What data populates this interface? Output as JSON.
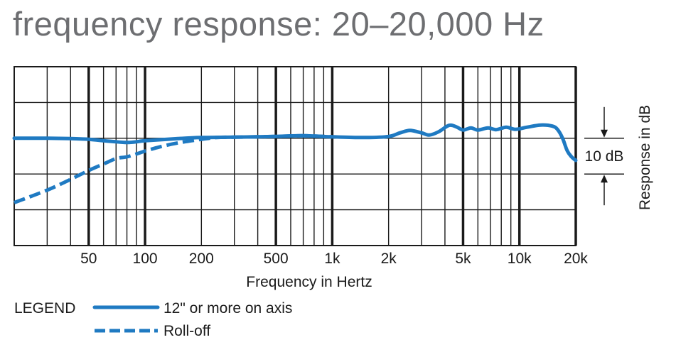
{
  "chart_data": {
    "type": "line",
    "title": "frequency response: 20–20,000 Hz",
    "xlabel": "Frequency in Hertz",
    "ylabel": "Response in dB",
    "x_scale": "log",
    "xlim": [
      20,
      20000
    ],
    "x_ticks": [
      {
        "value": 50,
        "label": "50"
      },
      {
        "value": 100,
        "label": "100"
      },
      {
        "value": 200,
        "label": "200"
      },
      {
        "value": 500,
        "label": "500"
      },
      {
        "value": 1000,
        "label": "1k"
      },
      {
        "value": 2000,
        "label": "2k"
      },
      {
        "value": 5000,
        "label": "5k"
      },
      {
        "value": 10000,
        "label": "10k"
      },
      {
        "value": 20000,
        "label": "20k"
      }
    ],
    "ylim": [
      -30,
      20
    ],
    "y_gridlines": [
      -30,
      -20,
      -10,
      0,
      10,
      20
    ],
    "scale_indicator": {
      "label": "10 dB",
      "from": -10,
      "to": 0
    },
    "grid": true,
    "legend": {
      "title": "LEGEND",
      "placement": "bottom-left"
    },
    "series": [
      {
        "name": "12\" or more on axis",
        "style": "solid",
        "color": "#1f7ac2",
        "points": [
          [
            20,
            0
          ],
          [
            30,
            0
          ],
          [
            40,
            -0.1
          ],
          [
            50,
            -0.3
          ],
          [
            60,
            -0.7
          ],
          [
            70,
            -1.0
          ],
          [
            80,
            -1.2
          ],
          [
            90,
            -1.0
          ],
          [
            100,
            -0.7
          ],
          [
            150,
            -0.1
          ],
          [
            200,
            0.2
          ],
          [
            300,
            0.3
          ],
          [
            500,
            0.5
          ],
          [
            700,
            0.7
          ],
          [
            1000,
            0.4
          ],
          [
            1500,
            0.2
          ],
          [
            2000,
            0.5
          ],
          [
            2300,
            1.5
          ],
          [
            2600,
            2.2
          ],
          [
            3000,
            1.5
          ],
          [
            3300,
            0.9
          ],
          [
            3700,
            1.8
          ],
          [
            4200,
            3.6
          ],
          [
            4600,
            3.2
          ],
          [
            5000,
            2.3
          ],
          [
            5500,
            2.9
          ],
          [
            6000,
            2.3
          ],
          [
            6800,
            2.9
          ],
          [
            7500,
            2.4
          ],
          [
            8500,
            3.1
          ],
          [
            9500,
            2.5
          ],
          [
            11000,
            3.1
          ],
          [
            13000,
            3.7
          ],
          [
            15000,
            3.4
          ],
          [
            16000,
            2.4
          ],
          [
            17000,
            0
          ],
          [
            18000,
            -3.5
          ],
          [
            19000,
            -5.2
          ],
          [
            20000,
            -6.2
          ]
        ]
      },
      {
        "name": "Roll-off",
        "style": "dashed",
        "color": "#1f7ac2",
        "points": [
          [
            20,
            -18
          ],
          [
            30,
            -14.5
          ],
          [
            40,
            -11.5
          ],
          [
            50,
            -9
          ],
          [
            60,
            -7.2
          ],
          [
            70,
            -5.7
          ],
          [
            80,
            -5.2
          ],
          [
            90,
            -4.4
          ],
          [
            100,
            -3.6
          ],
          [
            120,
            -2.4
          ],
          [
            150,
            -1.3
          ],
          [
            200,
            -0.3
          ],
          [
            240,
            0.2
          ],
          [
            300,
            0.3
          ],
          [
            500,
            0.5
          ],
          [
            700,
            0.7
          ],
          [
            1000,
            0.4
          ]
        ]
      }
    ]
  }
}
